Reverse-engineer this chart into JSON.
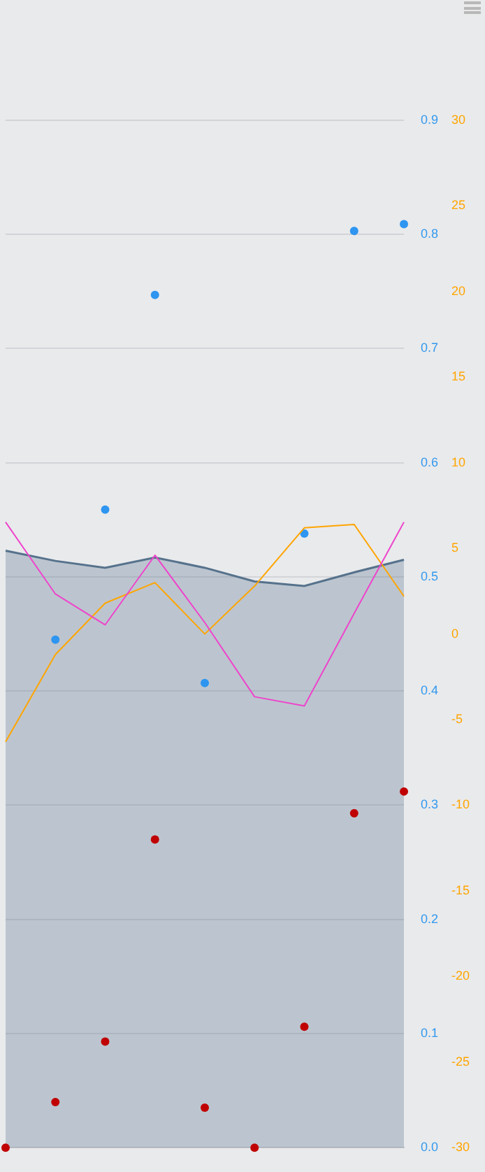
{
  "chart_data": {
    "type": "line",
    "categories": [
      null,
      null,
      null,
      null,
      null,
      null,
      null,
      null,
      null
    ],
    "series": [
      {
        "type": "area",
        "color": "#56728c",
        "values": [
          0.523,
          0.514,
          0.508,
          0.517,
          0.508,
          0.496,
          0.492,
          0.504,
          0.515
        ]
      },
      {
        "type": "line",
        "color": "#ee44cc",
        "values": [
          0.548,
          0.485,
          0.458,
          0.519,
          0.46,
          0.395,
          0.387,
          0.468,
          0.548
        ]
      },
      {
        "type": "line",
        "color": "#ffa500",
        "axis": "y2",
        "values": [
          -6.3,
          -1.2,
          1.8,
          3.0,
          0.0,
          2.8,
          6.2,
          6.4,
          2.2
        ]
      },
      {
        "type": "scatter",
        "color": "#2e95f0",
        "marker": "circle",
        "values": [
          null,
          0.445,
          0.559,
          0.747,
          0.407,
          null,
          0.538,
          0.803,
          0.809
        ]
      },
      {
        "type": "scatter",
        "color": "#c00000",
        "marker": "circle",
        "values": [
          0.0,
          0.04,
          0.093,
          0.27,
          0.035,
          0.0,
          0.106,
          0.293,
          0.312
        ]
      }
    ],
    "ylim": [
      0,
      0.9
    ],
    "yticks": [
      {
        "value": 0,
        "label": "0.0"
      },
      0.1,
      0.2,
      0.3,
      0.4,
      0.5,
      0.6,
      0.7,
      0.8,
      0.9
    ],
    "y2lim": [
      -30,
      30
    ],
    "y2ticks": [
      -30,
      -25,
      -20,
      -15,
      -10,
      -5,
      0,
      5,
      10,
      15,
      20,
      25,
      30
    ],
    "tick_labels": "y",
    "grid": "y",
    "legend": false
  }
}
